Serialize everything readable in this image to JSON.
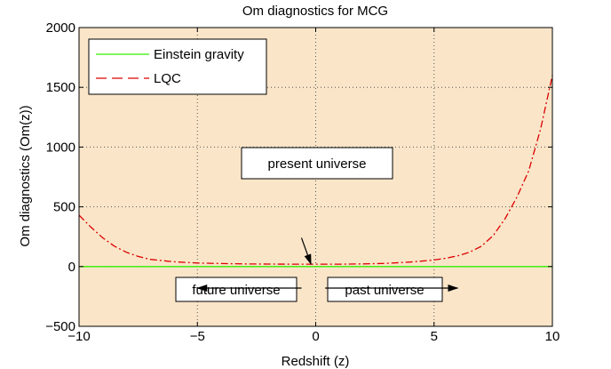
{
  "chart_data": {
    "type": "line",
    "title": "Om diagnostics for MCG",
    "xlabel": "Redshift (z)",
    "ylabel": "Om diagnostics (Om(z))",
    "xlim": [
      -10,
      10
    ],
    "ylim": [
      -500,
      2000
    ],
    "xticks": [
      -10,
      -5,
      0,
      5,
      10
    ],
    "xtick_labels": [
      "−10",
      "−5",
      "0",
      "5",
      "10"
    ],
    "yticks": [
      -500,
      0,
      500,
      1000,
      1500,
      2000
    ],
    "ytick_labels": [
      "−500",
      "0",
      "500",
      "1000",
      "1500",
      "2000"
    ],
    "grid": true,
    "background_color": "#fae5c8",
    "legend_position": "top-left",
    "series": [
      {
        "name": "Einstein gravity",
        "color": "#33ee00",
        "style": "solid",
        "x": [
          -10,
          -5,
          0,
          5,
          10
        ],
        "y": [
          0,
          0,
          0,
          0,
          0
        ]
      },
      {
        "name": "LQC",
        "color": "#dd0000",
        "style": "dashdot",
        "x": [
          -10,
          -9.5,
          -9,
          -8.5,
          -8,
          -7.5,
          -7,
          -6,
          -5,
          -4,
          -3,
          -2,
          -1,
          0,
          1,
          2,
          3,
          4,
          5,
          5.5,
          6,
          6.5,
          7,
          7.5,
          8,
          8.5,
          9,
          9.5,
          10
        ],
        "y": [
          430,
          330,
          240,
          170,
          120,
          85,
          60,
          40,
          30,
          25,
          22,
          21,
          20,
          20,
          20,
          22,
          27,
          38,
          55,
          70,
          90,
          120,
          170,
          260,
          400,
          580,
          800,
          1150,
          1600
        ]
      }
    ],
    "annotations": [
      {
        "text": "present universe",
        "arrow_from": [
          -0.6,
          240
        ],
        "arrow_to": [
          -0.2,
          20
        ]
      },
      {
        "text": "future universe",
        "arrow_from": [
          -0.6,
          -180
        ],
        "arrow_to": [
          -5,
          -180
        ]
      },
      {
        "text": "past universe",
        "arrow_from": [
          0.4,
          -180
        ],
        "arrow_to": [
          6,
          -180
        ]
      }
    ]
  }
}
